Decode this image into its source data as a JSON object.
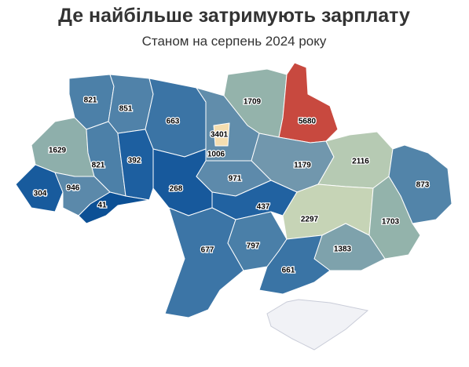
{
  "chart_data": {
    "type": "choropleth",
    "title": "Де найбільше затримують зарплату",
    "subtitle": "Станом на серпень 2024 року",
    "values": [
      821,
      851,
      663,
      3401,
      1709,
      5680,
      1629,
      821,
      392,
      1006,
      1179,
      2116,
      873,
      304,
      946,
      268,
      971,
      41,
      437,
      2297,
      1703,
      677,
      797,
      1383,
      661
    ]
  }
}
